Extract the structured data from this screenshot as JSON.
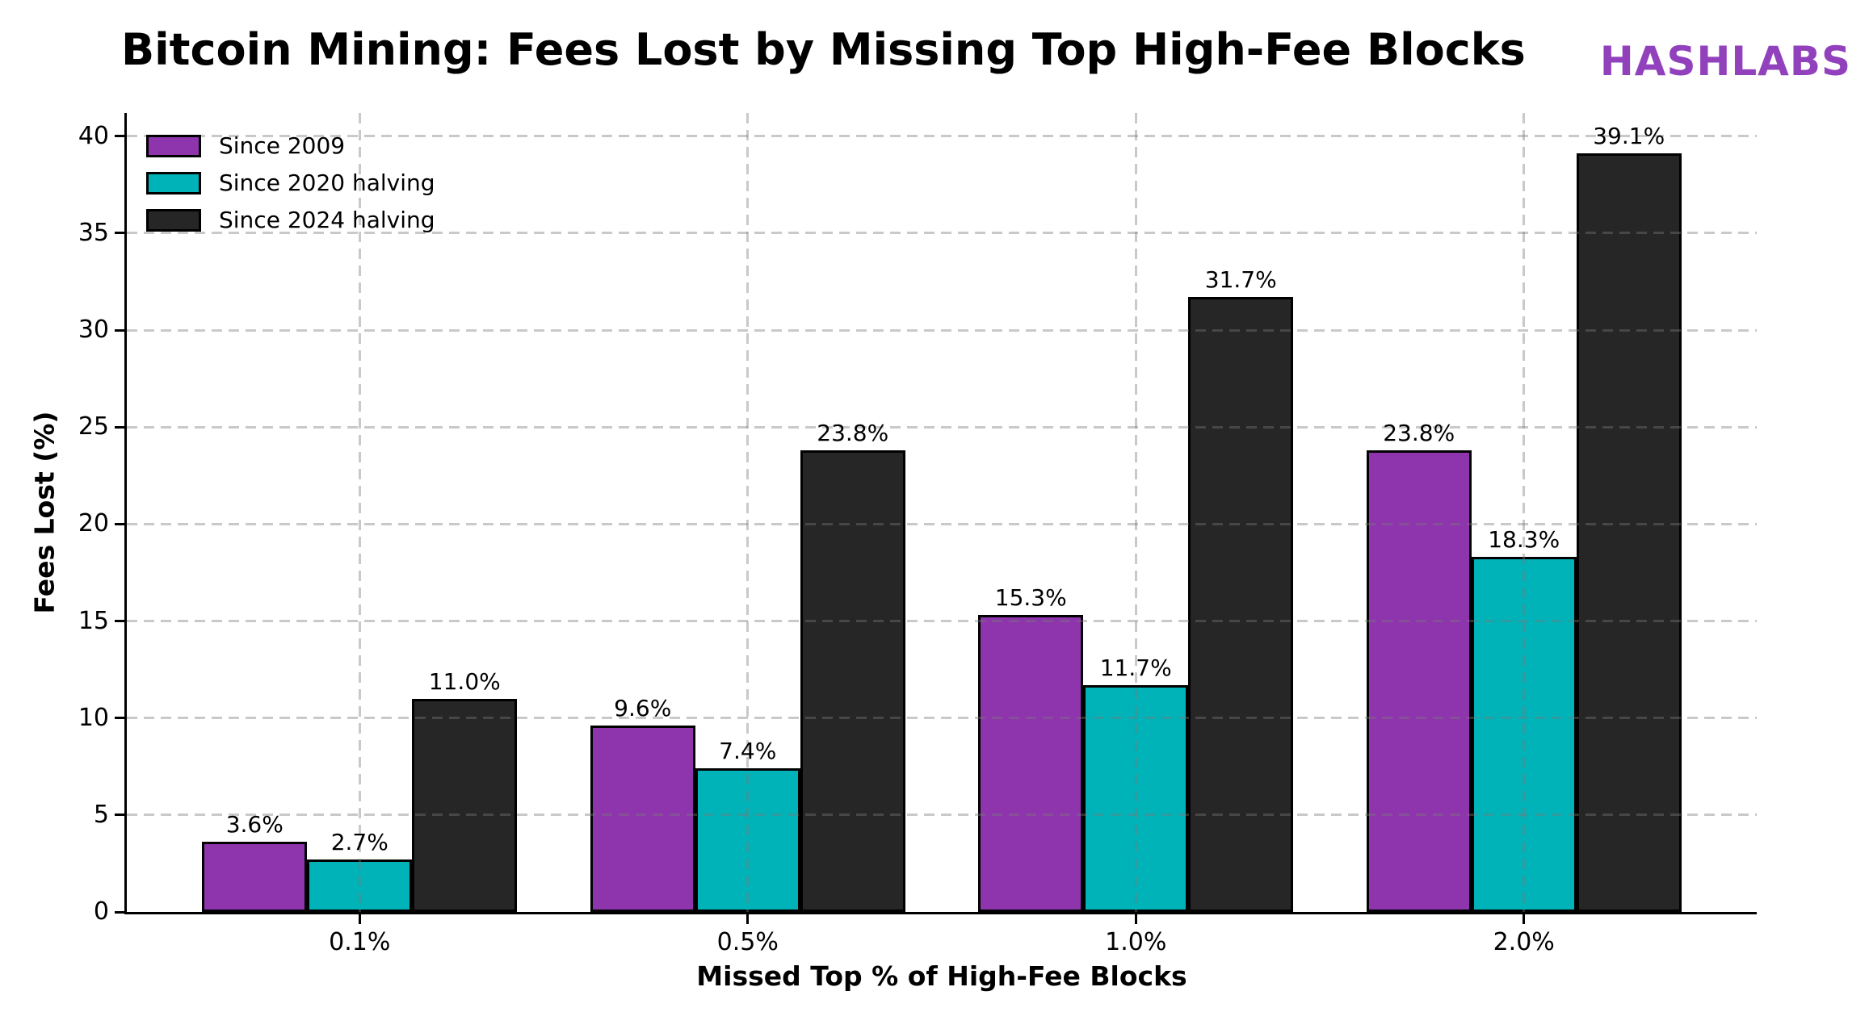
{
  "chart_data": {
    "type": "bar",
    "title": "Bitcoin Mining: Fees Lost by Missing Top High-Fee Blocks",
    "brand": "HASHLABS",
    "brand_color": "#9241bd",
    "xlabel": "Missed Top % of High-Fee Blocks",
    "ylabel": "Fees Lost (%)",
    "categories": [
      "0.1%",
      "0.5%",
      "1.0%",
      "2.0%"
    ],
    "series": [
      {
        "name": "Since 2009",
        "color": "#8e35ad",
        "values": [
          3.6,
          9.6,
          15.3,
          23.8
        ],
        "labels": [
          "3.6%",
          "9.6%",
          "15.3%",
          "23.8%"
        ]
      },
      {
        "name": "Since 2020 halving",
        "color": "#00b3b9",
        "values": [
          2.7,
          7.4,
          11.7,
          18.3
        ],
        "labels": [
          "2.7%",
          "7.4%",
          "11.7%",
          "18.3%"
        ]
      },
      {
        "name": "Since 2024 halving",
        "color": "#262626",
        "values": [
          11.0,
          23.8,
          31.7,
          39.1
        ],
        "labels": [
          "11.0%",
          "23.8%",
          "31.7%",
          "39.1%"
        ]
      }
    ],
    "ylim": [
      0,
      41.2
    ],
    "yticks": [
      0,
      5,
      10,
      15,
      20,
      25,
      30,
      35,
      40
    ],
    "grid": "dashed gray, horizontal and vertical, drawn above bars",
    "legend_position": "upper left",
    "bar_edge_color": "#000000",
    "text_color": "#000000"
  }
}
